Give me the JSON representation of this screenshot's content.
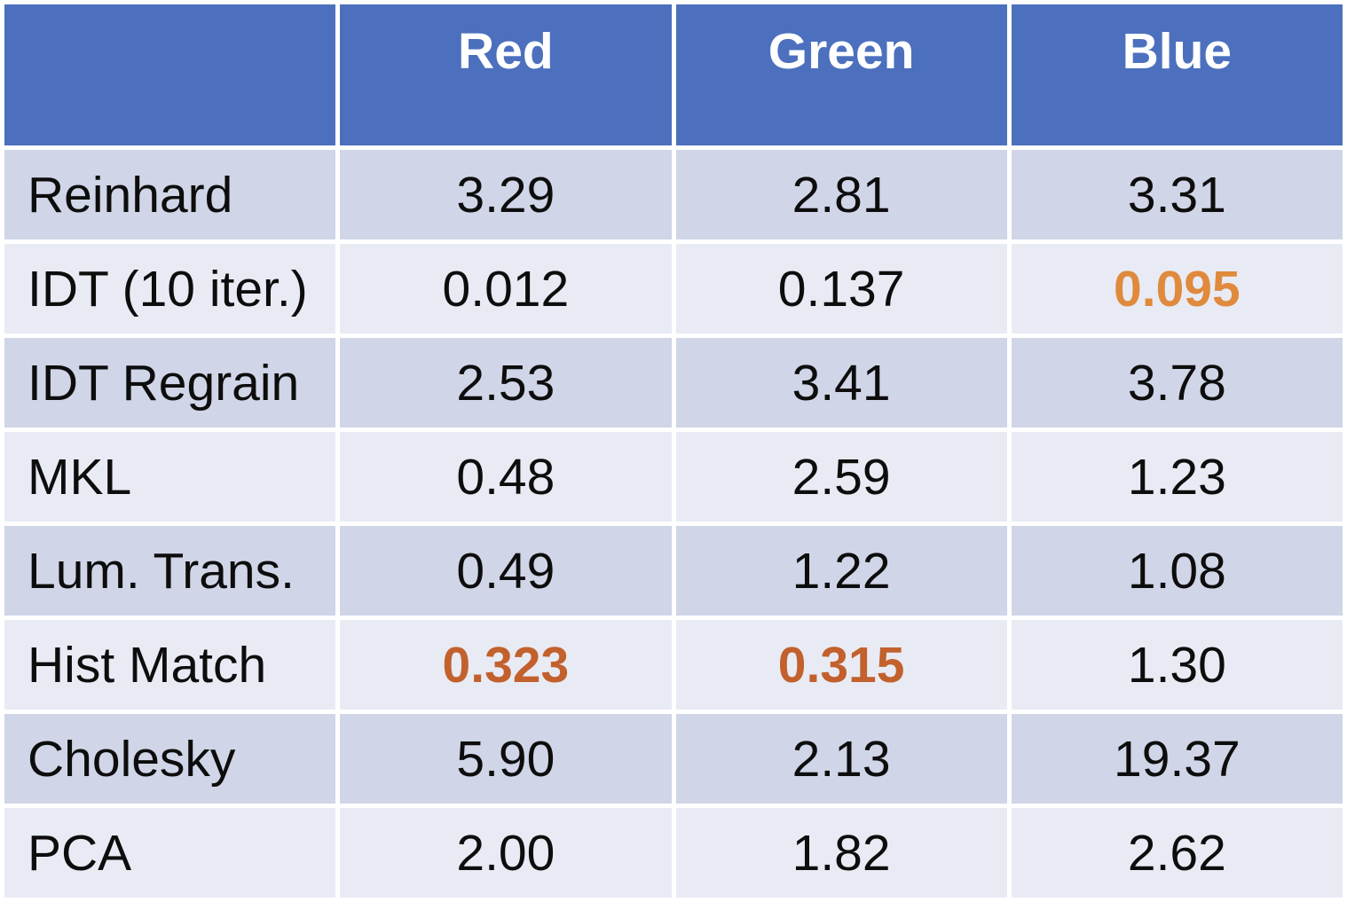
{
  "chart_data": {
    "type": "table",
    "title": "",
    "columns": [
      "",
      "Red",
      "Green",
      "Blue"
    ],
    "rows": [
      {
        "label": "Reinhard",
        "values": [
          "3.29",
          "2.81",
          "3.31"
        ]
      },
      {
        "label": "IDT (10 iter.)",
        "values": [
          "0.012",
          "0.137",
          "0.095"
        ]
      },
      {
        "label": "IDT Regrain",
        "values": [
          "2.53",
          "3.41",
          "3.78"
        ]
      },
      {
        "label": "MKL",
        "values": [
          "0.48",
          "2.59",
          "1.23"
        ]
      },
      {
        "label": "Lum. Trans.",
        "values": [
          "0.49",
          "1.22",
          "1.08"
        ]
      },
      {
        "label": "Hist Match",
        "values": [
          "0.323",
          "0.315",
          "1.30"
        ]
      },
      {
        "label": "Cholesky",
        "values": [
          "5.90",
          "2.13",
          "19.37"
        ]
      },
      {
        "label": "PCA",
        "values": [
          "2.00",
          "1.82",
          "2.62"
        ]
      }
    ],
    "highlighted_cells": [
      {
        "row": "IDT (10 iter.)",
        "column": "Blue",
        "value": "0.095",
        "style": "bold orange",
        "color": "#DF8A3D"
      },
      {
        "row": "Hist Match",
        "column": "Red",
        "value": "0.323",
        "style": "bold dark orange",
        "color": "#C2612D"
      },
      {
        "row": "Hist Match",
        "column": "Green",
        "value": "0.315",
        "style": "bold dark orange",
        "color": "#C2612D"
      }
    ],
    "layout": {
      "header_background": "#4C70BE",
      "header_text_color": "#ffffff",
      "row_band_dark": "#D0D5E7",
      "row_band_light": "#E9EBF4",
      "grid_gap_color": "#ffffff",
      "body_text_color": "#0d0d0d"
    }
  },
  "header": {
    "col0": "",
    "col1": "Red",
    "col2": "Green",
    "col3": "Blue"
  },
  "rows": [
    {
      "label": "Reinhard",
      "v1": "3.29",
      "v2": "2.81",
      "v3": "3.31"
    },
    {
      "label": "IDT (10 iter.)",
      "v1": "0.012",
      "v2": "0.137",
      "v3": "0.095"
    },
    {
      "label": "IDT Regrain",
      "v1": "2.53",
      "v2": "3.41",
      "v3": "3.78"
    },
    {
      "label": "MKL",
      "v1": "0.48",
      "v2": "2.59",
      "v3": "1.23"
    },
    {
      "label": "Lum. Trans.",
      "v1": "0.49",
      "v2": "1.22",
      "v3": "1.08"
    },
    {
      "label": "Hist Match",
      "v1": "0.323",
      "v2": "0.315",
      "v3": "1.30"
    },
    {
      "label": "Cholesky",
      "v1": "5.90",
      "v2": "2.13",
      "v3": "19.37"
    },
    {
      "label": "PCA",
      "v1": "2.00",
      "v2": "1.82",
      "v3": "2.62"
    }
  ]
}
